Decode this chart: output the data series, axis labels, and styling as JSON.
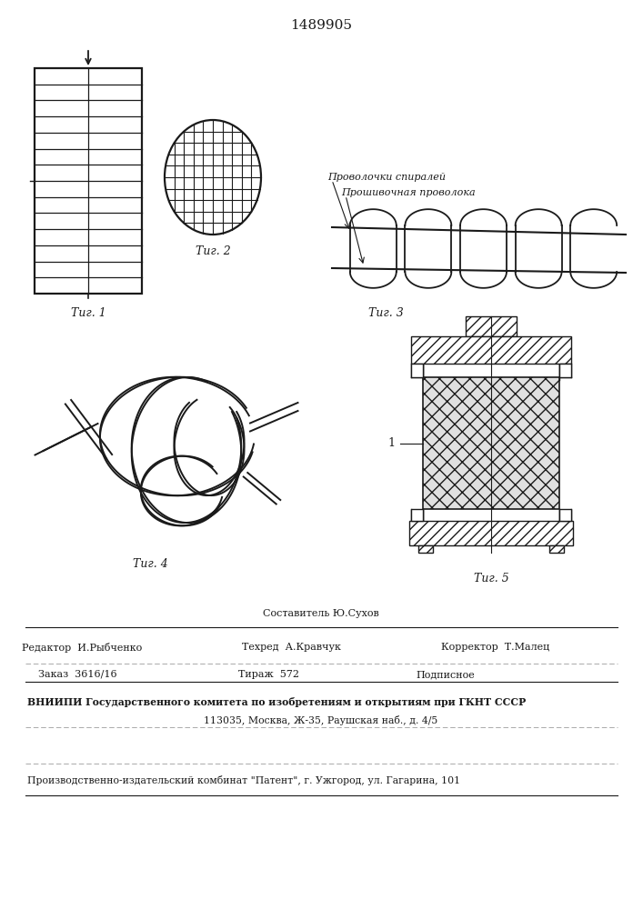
{
  "title": "1489905",
  "fig1_label": "Τиг. 1",
  "fig2_label": "Τиг. 2",
  "fig3_label": "Τиг. 3",
  "fig4_label": "Τиг. 4",
  "fig5_label": "Τиг. 5",
  "label_spirals": "Проволочки спиралей",
  "label_wire": "Прошивочная проволока",
  "label_1": "1",
  "footer_composer": "Составитель Ю.Сухов",
  "footer_editor": "Редактор  И.Рыбченко",
  "footer_tech": "Техред  А.Кравчук",
  "footer_corrector": "Корректор  Т.Малец",
  "footer_order": "Заказ  3616/16",
  "footer_tiraz": "Тираж  572",
  "footer_podp": "Подписное",
  "footer_vniiipi": "ВНИИПИ Государственного комитета по изобретениям и открытиям при ГКНТ СССР",
  "footer_address": "113035, Москва, Ж-35, Раушская наб., д. 4/5",
  "footer_patent": "Производственно-издательский комбинат \"Патент\", г. Ужгород, ул. Гагарина, 101"
}
